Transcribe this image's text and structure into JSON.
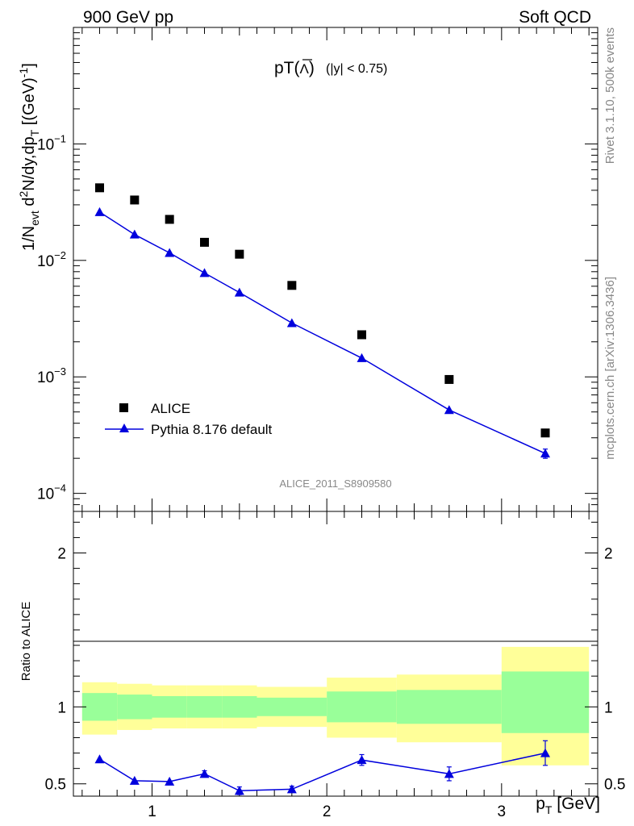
{
  "header": {
    "left": "900 GeV pp",
    "right": "Soft QCD"
  },
  "side_labels": {
    "rivet": "Rivet 3.1.10,  500k events",
    "mcplots": "mcplots.cern.ch [arXiv:1306.3436]"
  },
  "chart_data": [
    {
      "type": "scatter",
      "title": "pT(Λ̄) (|y| < 0.75)",
      "title_main": "pT(",
      "title_symbol": "Λ",
      "title_close": ")",
      "title_cut": "(|y| < 0.75)",
      "ylabel": "1/N_evt d²N/dy,dp_T [(GeV)⁻¹]",
      "yscale": "log",
      "ylim": [
        7e-05,
        1.0
      ],
      "xlim": [
        0.55,
        3.55
      ],
      "watermark": "ALICE_2011_S8909580",
      "y_tick_labels": [
        {
          "value": 0.1,
          "base": "10",
          "exp": "−1"
        },
        {
          "value": 0.01,
          "base": "10",
          "exp": "−2"
        },
        {
          "value": 0.001,
          "base": "10",
          "exp": "−3"
        },
        {
          "value": 0.0001,
          "base": "10",
          "exp": "−4"
        }
      ],
      "legend_placement": "lower-left",
      "series": [
        {
          "name": "ALICE",
          "color": "#000000",
          "marker": "square",
          "x": [
            0.7,
            0.9,
            1.1,
            1.3,
            1.5,
            1.8,
            2.2,
            2.7,
            3.25
          ],
          "y": [
            0.042,
            0.033,
            0.0225,
            0.0143,
            0.0113,
            0.0061,
            0.0023,
            0.00095,
            0.00033
          ]
        },
        {
          "name": "Pythia 8.176 default",
          "color": "#0000dd",
          "marker": "triangle",
          "x": [
            0.7,
            0.9,
            1.1,
            1.3,
            1.5,
            1.8,
            2.2,
            2.7,
            3.25
          ],
          "y": [
            0.026,
            0.0167,
            0.0116,
            0.0078,
            0.0053,
            0.0029,
            0.00145,
            0.00052,
            0.00022
          ],
          "yerr": [
            0,
            0,
            0,
            0,
            0,
            0,
            0,
            0,
            2e-05
          ]
        }
      ]
    },
    {
      "type": "line",
      "ylabel": "Ratio to ALICE",
      "xlabel": "p_T [GeV]",
      "ylim": [
        0.42,
        2.27
      ],
      "xlim": [
        0.55,
        3.55
      ],
      "y_ticks": [
        "0.5",
        "1",
        "2"
      ],
      "x_ticks": [
        "1",
        "2",
        "3"
      ],
      "reference_line": 1.0,
      "bands": [
        {
          "x0": 0.6,
          "x1": 0.8,
          "green": [
            0.91,
            1.09
          ],
          "yellow": [
            0.82,
            1.16
          ]
        },
        {
          "x0": 0.8,
          "x1": 1.0,
          "green": [
            0.92,
            1.08
          ],
          "yellow": [
            0.85,
            1.15
          ]
        },
        {
          "x0": 1.0,
          "x1": 1.2,
          "green": [
            0.93,
            1.07
          ],
          "yellow": [
            0.86,
            1.14
          ]
        },
        {
          "x0": 1.2,
          "x1": 1.4,
          "green": [
            0.93,
            1.07
          ],
          "yellow": [
            0.86,
            1.14
          ]
        },
        {
          "x0": 1.4,
          "x1": 1.6,
          "green": [
            0.93,
            1.07
          ],
          "yellow": [
            0.86,
            1.14
          ]
        },
        {
          "x0": 1.6,
          "x1": 2.0,
          "green": [
            0.94,
            1.06
          ],
          "yellow": [
            0.87,
            1.13
          ]
        },
        {
          "x0": 2.0,
          "x1": 2.4,
          "green": [
            0.9,
            1.1
          ],
          "yellow": [
            0.8,
            1.19
          ]
        },
        {
          "x0": 2.4,
          "x1": 3.0,
          "green": [
            0.89,
            1.11
          ],
          "yellow": [
            0.77,
            1.21
          ]
        },
        {
          "x0": 3.0,
          "x1": 3.5,
          "green": [
            0.83,
            1.23
          ],
          "yellow": [
            0.62,
            1.39
          ]
        }
      ],
      "series": [
        {
          "name": "Pythia 8.176 default",
          "color": "#0000dd",
          "x": [
            0.7,
            0.9,
            1.1,
            1.3,
            1.5,
            1.8,
            2.2,
            2.7,
            3.25
          ],
          "y": [
            0.66,
            0.52,
            0.515,
            0.565,
            0.455,
            0.465,
            0.655,
            0.565,
            0.7
          ],
          "yerr": [
            0.0,
            0.0,
            0.0,
            0.02,
            0.025,
            0.02,
            0.035,
            0.045,
            0.08
          ]
        }
      ]
    }
  ]
}
